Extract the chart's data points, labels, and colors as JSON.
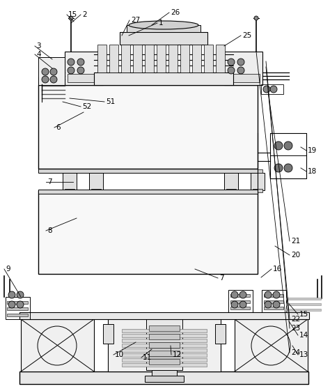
{
  "bg": "#ffffff",
  "lc": "#000000",
  "fg1": "#f0f0f0",
  "fg2": "#e0e0e0",
  "fg3": "#d0d0d0",
  "fg4": "#c0c0c0",
  "fg5": "#b0b0b0"
}
